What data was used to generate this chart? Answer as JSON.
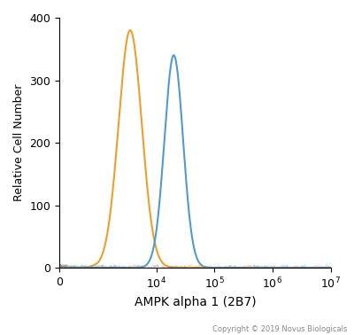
{
  "orange_peak_log": 3.55,
  "orange_peak_height": 380,
  "orange_sigma_log": 0.2,
  "blue_peak_log": 4.3,
  "blue_peak_height": 340,
  "blue_sigma_log": 0.16,
  "orange_color": "#E8A030",
  "blue_color": "#5599CC",
  "ylabel": "Relative Cell Number",
  "xlabel": "AMPK alpha 1 (2B7)",
  "ylim": [
    0,
    400
  ],
  "xlim_left": -2,
  "xlim_right": 10000000.0,
  "linthresh": 1000,
  "linscale": 0.6,
  "copyright": "Copyright © 2019 Novus Biologicals",
  "background_color": "#ffffff",
  "linewidth": 1.5
}
